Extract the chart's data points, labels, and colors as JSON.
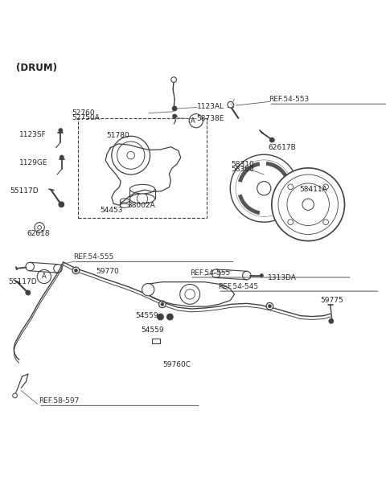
{
  "title": "(DRUM)",
  "bg_color": "#ffffff",
  "line_color": "#404040",
  "text_color": "#222222",
  "ref_color": "#555555",
  "labels": {
    "1123AL": "1123AL",
    "58738E": "58738E",
    "52760": "52760",
    "52750A": "52750A",
    "51780": "51780",
    "1123SF": "1123SF",
    "1129GE": "1129GE",
    "55117D": "55117D",
    "38002A": "38002A",
    "54453": "54453",
    "62617B": "62617B",
    "58310": "58310",
    "58360": "58360",
    "58411A": "58411A",
    "62618": "62618",
    "REF54553": "REF.54-553",
    "REF54555a": "REF.54-555",
    "59770": "59770",
    "55117D_b": "55117D",
    "REF54555b": "REF.54-555",
    "1313DA": "1313DA",
    "REF54545": "REF.54-545",
    "54559a": "54559",
    "54559b": "54559",
    "59775": "59775",
    "59760C": "59760C",
    "REF58597": "REF.58-597"
  }
}
